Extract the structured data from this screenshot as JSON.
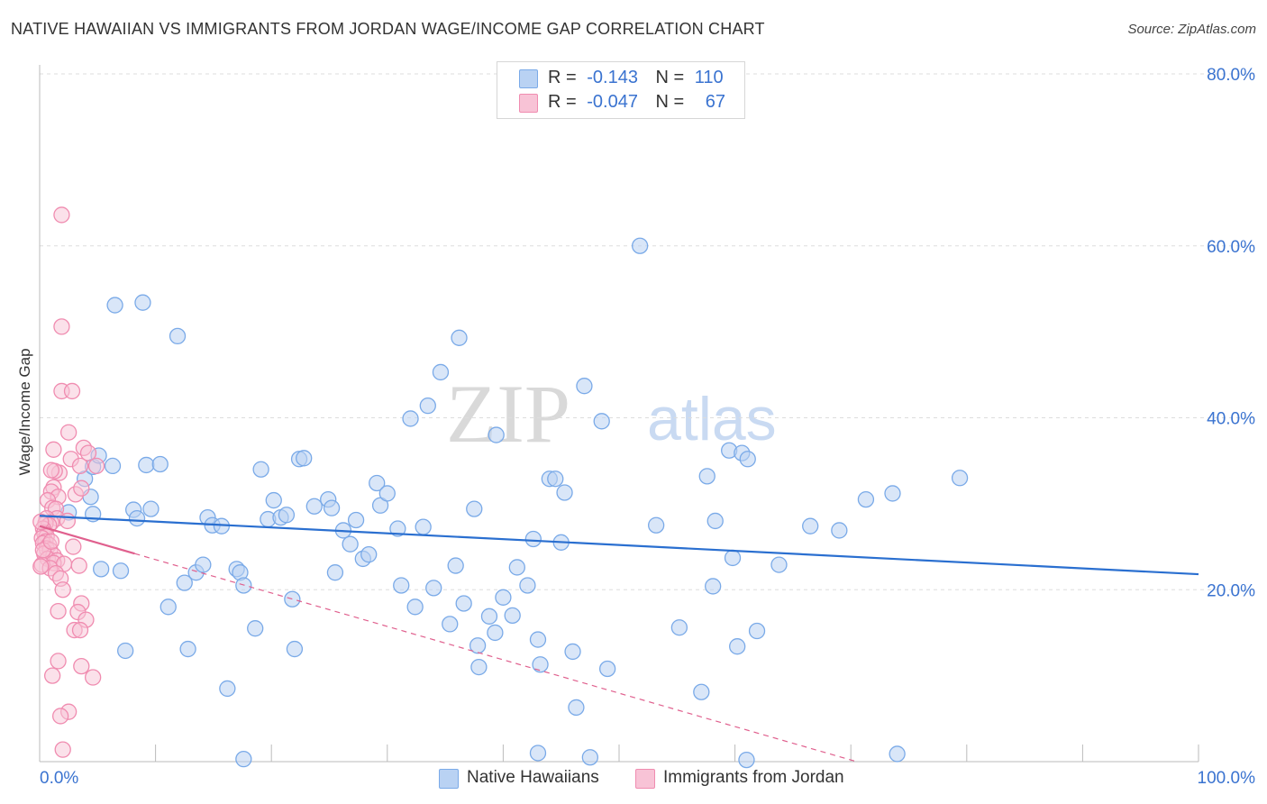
{
  "title": "NATIVE HAWAIIAN VS IMMIGRANTS FROM JORDAN WAGE/INCOME GAP CORRELATION CHART",
  "source": "Source: ZipAtlas.com",
  "colors": {
    "blue": "#7aaae8",
    "blue_fill": "#b9d2f3",
    "blue_line": "#2a6fd0",
    "pink": "#f08cb0",
    "pink_fill": "#f8c3d6",
    "pink_line": "#e0608e",
    "axis_label": "#3a73d0",
    "grid": "#dddddd"
  },
  "legend": {
    "rows": [
      {
        "r_label": "R =",
        "r_value": "-0.143",
        "n_label": "N =",
        "n_value": "110"
      },
      {
        "r_label": "R =",
        "r_value": "-0.047",
        "n_label": "N =",
        "n_value": "67"
      }
    ]
  },
  "bottom_legend": [
    "Native Hawaiians",
    "Immigrants from Jordan"
  ],
  "watermark": {
    "zip": "ZIP",
    "atlas": "atlas"
  },
  "chart_data": {
    "type": "scatter",
    "title": "NATIVE HAWAIIAN VS IMMIGRANTS FROM JORDAN WAGE/INCOME GAP CORRELATION CHART",
    "xlabel": "",
    "ylabel": "Wage/Income Gap",
    "xlim": [
      0,
      100
    ],
    "ylim": [
      0,
      80
    ],
    "x_tick_labels": [
      "0.0%",
      "100.0%"
    ],
    "y_ticks": [
      20,
      40,
      60,
      80
    ],
    "y_tick_labels": [
      "20.0%",
      "40.0%",
      "60.0%",
      "80.0%"
    ],
    "grid": true,
    "series": [
      {
        "name": "Native Hawaiians",
        "r": -0.143,
        "n": 110,
        "trend": {
          "x0": 0,
          "y0": 28.6,
          "x1": 100,
          "y1": 21.8
        },
        "points": [
          [
            2.5,
            29.0
          ],
          [
            4.6,
            28.8
          ],
          [
            3.9,
            32.9
          ],
          [
            4.6,
            34.3
          ],
          [
            5.1,
            35.6
          ],
          [
            6.3,
            34.4
          ],
          [
            4.4,
            30.8
          ],
          [
            5.3,
            22.4
          ],
          [
            7.0,
            22.2
          ],
          [
            6.5,
            53.1
          ],
          [
            8.9,
            53.4
          ],
          [
            8.1,
            29.3
          ],
          [
            8.4,
            28.3
          ],
          [
            9.6,
            29.4
          ],
          [
            9.2,
            34.5
          ],
          [
            10.4,
            34.6
          ],
          [
            11.1,
            18.0
          ],
          [
            11.9,
            49.5
          ],
          [
            7.4,
            12.9
          ],
          [
            12.8,
            13.1
          ],
          [
            12.5,
            20.8
          ],
          [
            13.5,
            22.0
          ],
          [
            14.1,
            22.9
          ],
          [
            14.5,
            28.4
          ],
          [
            14.9,
            27.5
          ],
          [
            15.7,
            27.4
          ],
          [
            17.0,
            22.4
          ],
          [
            17.3,
            22.0
          ],
          [
            17.6,
            20.5
          ],
          [
            18.6,
            15.5
          ],
          [
            19.1,
            34.0
          ],
          [
            19.7,
            28.2
          ],
          [
            20.2,
            30.4
          ],
          [
            20.8,
            28.4
          ],
          [
            21.3,
            28.7
          ],
          [
            21.8,
            18.9
          ],
          [
            22.4,
            35.2
          ],
          [
            22.8,
            35.3
          ],
          [
            22.0,
            13.1
          ],
          [
            23.7,
            29.7
          ],
          [
            24.9,
            30.5
          ],
          [
            25.2,
            29.5
          ],
          [
            25.5,
            22.0
          ],
          [
            26.2,
            26.9
          ],
          [
            26.8,
            25.3
          ],
          [
            27.3,
            28.1
          ],
          [
            27.9,
            23.6
          ],
          [
            28.4,
            24.1
          ],
          [
            16.2,
            8.5
          ],
          [
            29.1,
            32.4
          ],
          [
            29.4,
            29.8
          ],
          [
            30.0,
            31.2
          ],
          [
            30.9,
            27.1
          ],
          [
            31.2,
            20.5
          ],
          [
            32.0,
            39.9
          ],
          [
            32.4,
            18.0
          ],
          [
            33.1,
            27.3
          ],
          [
            33.5,
            41.4
          ],
          [
            34.0,
            20.2
          ],
          [
            34.6,
            45.3
          ],
          [
            35.4,
            16.0
          ],
          [
            36.2,
            49.3
          ],
          [
            35.9,
            22.8
          ],
          [
            36.6,
            18.4
          ],
          [
            37.5,
            29.4
          ],
          [
            37.8,
            13.5
          ],
          [
            37.9,
            11.0
          ],
          [
            38.8,
            16.9
          ],
          [
            39.3,
            15.0
          ],
          [
            39.4,
            38.0
          ],
          [
            40.0,
            19.1
          ],
          [
            40.8,
            17.0
          ],
          [
            41.2,
            22.6
          ],
          [
            42.1,
            20.5
          ],
          [
            42.6,
            25.9
          ],
          [
            43.0,
            14.2
          ],
          [
            43.2,
            11.3
          ],
          [
            44.0,
            32.9
          ],
          [
            44.5,
            32.9
          ],
          [
            45.0,
            25.5
          ],
          [
            45.3,
            31.3
          ],
          [
            46.0,
            12.8
          ],
          [
            46.3,
            6.3
          ],
          [
            47.0,
            43.7
          ],
          [
            48.5,
            39.6
          ],
          [
            49.0,
            10.8
          ],
          [
            51.8,
            60.0
          ],
          [
            53.2,
            27.5
          ],
          [
            55.2,
            15.6
          ],
          [
            57.1,
            8.1
          ],
          [
            57.6,
            33.2
          ],
          [
            58.1,
            20.4
          ],
          [
            58.3,
            28.0
          ],
          [
            59.5,
            36.2
          ],
          [
            59.8,
            23.7
          ],
          [
            60.6,
            35.9
          ],
          [
            60.2,
            13.4
          ],
          [
            61.1,
            35.2
          ],
          [
            61.9,
            15.2
          ],
          [
            63.8,
            22.9
          ],
          [
            66.5,
            27.4
          ],
          [
            69.0,
            26.9
          ],
          [
            71.3,
            30.5
          ],
          [
            73.6,
            31.2
          ],
          [
            79.4,
            33.0
          ],
          [
            43.0,
            1.0
          ],
          [
            74.0,
            0.9
          ],
          [
            47.5,
            0.5
          ],
          [
            61.0,
            0.2
          ],
          [
            17.6,
            0.3
          ]
        ]
      },
      {
        "name": "Immigrants from Jordan",
        "r": -0.047,
        "n": 67,
        "trend": {
          "x0": 0,
          "y0": 27.4,
          "x1": 8.2,
          "y1": 24.2,
          "dashed_x1": 70.5,
          "dashed_y1": 0
        },
        "points": [
          [
            1.9,
            63.6
          ],
          [
            1.9,
            50.6
          ],
          [
            1.9,
            43.1
          ],
          [
            2.8,
            43.1
          ],
          [
            2.5,
            38.3
          ],
          [
            1.2,
            36.3
          ],
          [
            1.7,
            33.6
          ],
          [
            1.3,
            33.8
          ],
          [
            1.0,
            33.9
          ],
          [
            1.2,
            31.9
          ],
          [
            1.0,
            31.4
          ],
          [
            1.6,
            30.8
          ],
          [
            0.7,
            30.4
          ],
          [
            1.1,
            29.5
          ],
          [
            1.4,
            29.4
          ],
          [
            1.5,
            28.3
          ],
          [
            0.6,
            28.3
          ],
          [
            1.0,
            27.8
          ],
          [
            0.5,
            27.7
          ],
          [
            0.8,
            27.5
          ],
          [
            0.3,
            27.1
          ],
          [
            0.4,
            26.6
          ],
          [
            0.6,
            26.2
          ],
          [
            0.2,
            26.0
          ],
          [
            0.5,
            25.6
          ],
          [
            0.3,
            25.4
          ],
          [
            0.8,
            25.2
          ],
          [
            0.6,
            24.8
          ],
          [
            0.9,
            24.6
          ],
          [
            0.4,
            24.2
          ],
          [
            1.2,
            24.0
          ],
          [
            0.7,
            23.6
          ],
          [
            1.5,
            23.4
          ],
          [
            1.2,
            23.1
          ],
          [
            2.1,
            23.0
          ],
          [
            0.2,
            22.9
          ],
          [
            0.9,
            22.5
          ],
          [
            1.4,
            21.9
          ],
          [
            1.8,
            21.3
          ],
          [
            2.0,
            20.0
          ],
          [
            2.7,
            35.2
          ],
          [
            3.5,
            34.4
          ],
          [
            3.8,
            36.5
          ],
          [
            4.2,
            35.9
          ],
          [
            3.1,
            31.1
          ],
          [
            3.6,
            31.8
          ],
          [
            2.9,
            25.0
          ],
          [
            3.4,
            22.8
          ],
          [
            3.6,
            18.4
          ],
          [
            3.3,
            17.4
          ],
          [
            4.0,
            16.5
          ],
          [
            3.0,
            15.3
          ],
          [
            3.5,
            15.3
          ],
          [
            1.6,
            17.5
          ],
          [
            1.6,
            11.7
          ],
          [
            3.6,
            11.1
          ],
          [
            1.1,
            10.0
          ],
          [
            4.6,
            9.8
          ],
          [
            2.5,
            5.8
          ],
          [
            1.8,
            5.3
          ],
          [
            2.0,
            1.4
          ],
          [
            4.9,
            34.4
          ],
          [
            0.1,
            27.9
          ],
          [
            0.1,
            22.7
          ],
          [
            2.4,
            28.0
          ],
          [
            0.3,
            24.6
          ],
          [
            1.0,
            25.6
          ]
        ]
      }
    ]
  }
}
